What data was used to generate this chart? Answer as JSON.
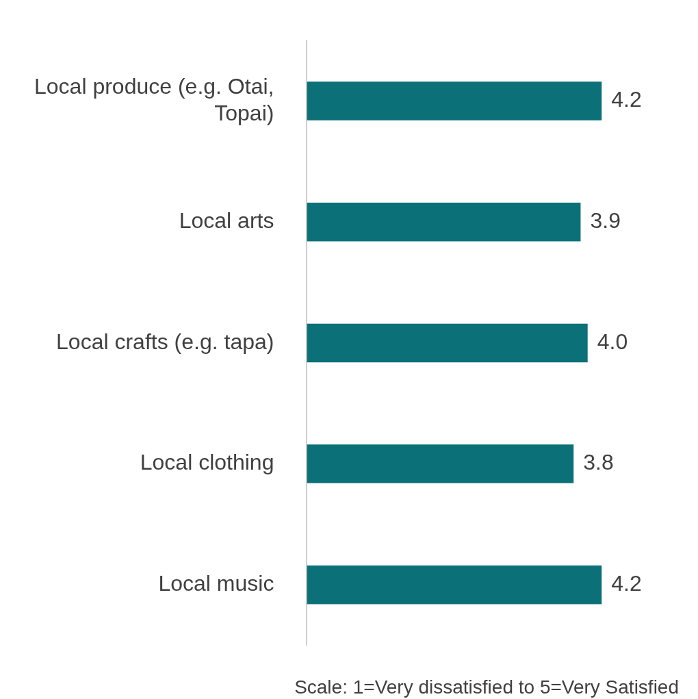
{
  "chart_data": {
    "type": "bar",
    "orientation": "horizontal",
    "categories": [
      "Local produce (e.g. Otai, Topai)",
      "Local arts",
      "Local crafts (e.g. tapa)",
      "Local clothing",
      "Local music"
    ],
    "values": [
      4.2,
      3.9,
      4.0,
      3.8,
      4.2
    ],
    "value_labels": [
      "4.2",
      "3.9",
      "4.0",
      "3.8",
      "4.2"
    ],
    "color": "#0b7077",
    "tick_labels": "y",
    "legend": false,
    "annotations": [
      "Scale: 1=Very dissatisfied to 5=Very Satisfied"
    ]
  }
}
